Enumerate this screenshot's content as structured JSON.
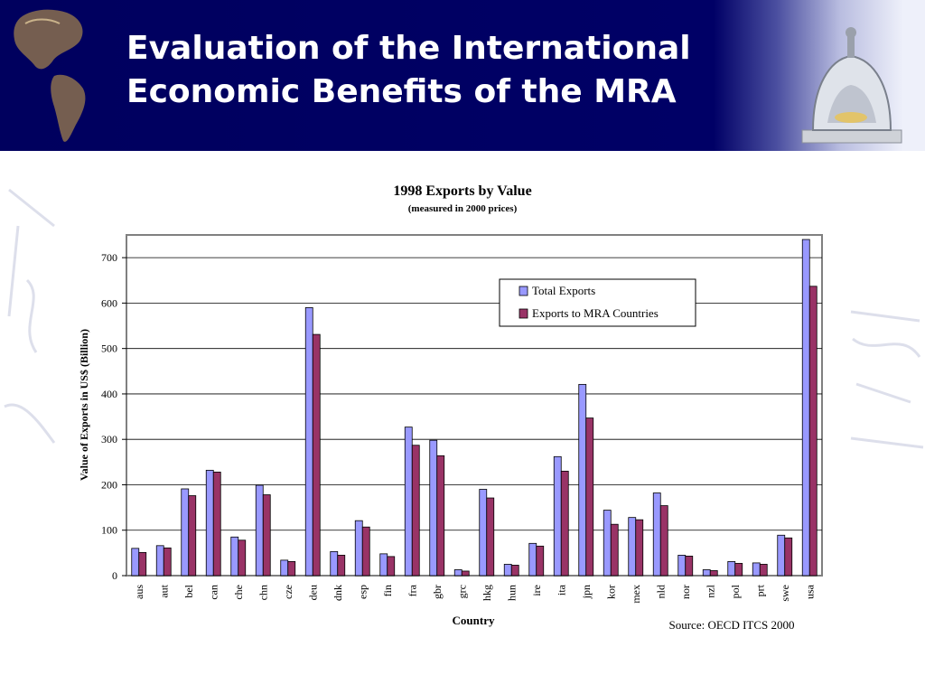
{
  "slide": {
    "title_line1": "Evaluation of the International",
    "title_line2": "Economic Benefits of the MRA",
    "banner_color": "#000066"
  },
  "chart_data": {
    "type": "bar",
    "title": "1998 Exports by Value",
    "subtitle": "(measured in 2000 prices)",
    "xlabel": "Country",
    "ylabel": "Value of Exports in US$ (Billion)",
    "ylim": [
      0,
      750
    ],
    "yticks": [
      0,
      100,
      200,
      300,
      400,
      500,
      600,
      700
    ],
    "grid": true,
    "legend_position": "top-right",
    "source": "Source: OECD ITCS 2000",
    "categories": [
      "aus",
      "aut",
      "bel",
      "can",
      "che",
      "chn",
      "cze",
      "deu",
      "dnk",
      "esp",
      "fin",
      "fra",
      "gbr",
      "grc",
      "hkg",
      "hun",
      "ire",
      "ita",
      "jpn",
      "kor",
      "mex",
      "nld",
      "nor",
      "nzl",
      "pol",
      "prt",
      "swe",
      "usa"
    ],
    "series": [
      {
        "name": "Total Exports",
        "color": "#9999ff",
        "values": [
          60,
          66,
          191,
          232,
          85,
          199,
          34,
          590,
          53,
          121,
          48,
          327,
          298,
          13,
          190,
          25,
          71,
          262,
          421,
          144,
          128,
          182,
          45,
          13,
          31,
          28,
          89,
          740
        ]
      },
      {
        "name": "Exports to MRA Countries",
        "color": "#993366",
        "values": [
          51,
          61,
          176,
          228,
          78,
          178,
          31,
          531,
          45,
          107,
          42,
          287,
          264,
          10,
          171,
          23,
          65,
          230,
          347,
          113,
          123,
          154,
          43,
          11,
          27,
          25,
          83,
          637
        ]
      }
    ]
  }
}
